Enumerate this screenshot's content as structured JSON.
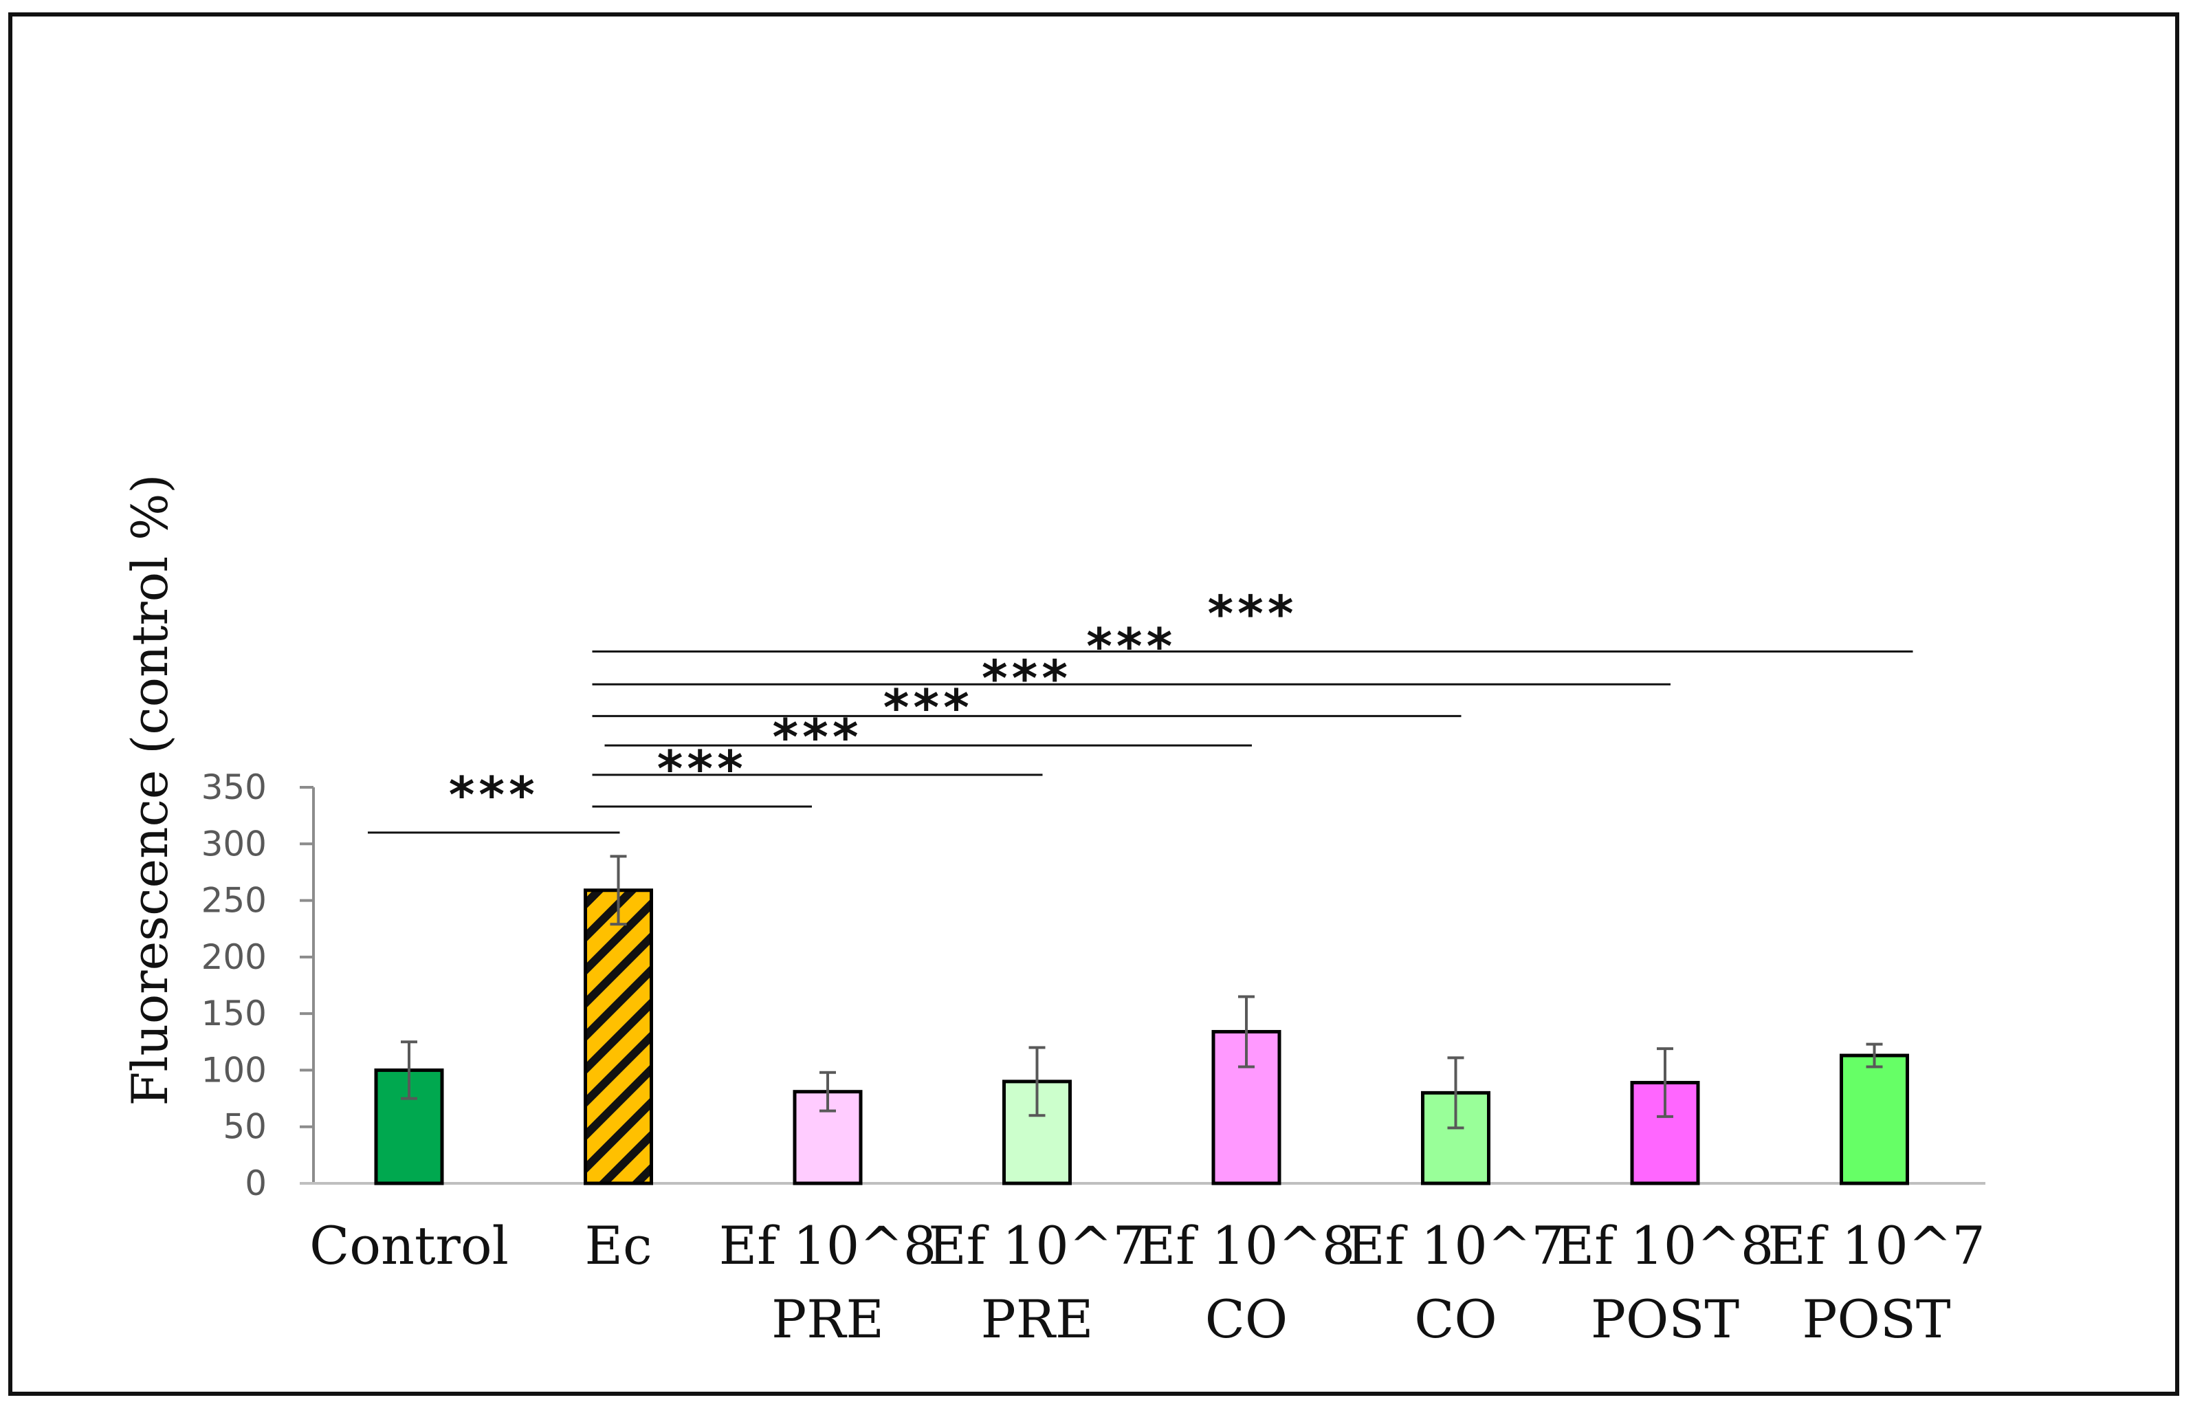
{
  "chart_data": {
    "type": "bar",
    "title": "",
    "xlabel": "",
    "ylabel": "Fluorescence (control %)",
    "ylim": [
      0,
      350
    ],
    "yticks": [
      0,
      50,
      100,
      150,
      200,
      250,
      300,
      350
    ],
    "grid": false,
    "categories": [
      [
        "Control"
      ],
      [
        "Ec"
      ],
      [
        "Ef 10^8",
        "PRE"
      ],
      [
        "Ef 10^7",
        "PRE"
      ],
      [
        "Ef 10^8",
        "CO"
      ],
      [
        "Ef 10^7",
        "CO"
      ],
      [
        "Ef 10^8",
        "POST"
      ],
      [
        "Ef 10^7",
        "POST"
      ]
    ],
    "values": [
      100,
      259,
      81,
      90,
      134,
      80,
      89,
      113
    ],
    "errors": [
      25,
      30,
      17,
      30,
      31,
      31,
      30,
      10
    ],
    "bar_colors": [
      "#00a84f",
      "#ffc000",
      "#ffccff",
      "#ccffcc",
      "#ff99ff",
      "#99ff99",
      "#ff66ff",
      "#66ff66"
    ],
    "bar_hatched": [
      false,
      true,
      false,
      false,
      false,
      false,
      false,
      false
    ],
    "significance": [
      {
        "from": 0,
        "to": 1,
        "label": "***",
        "level": 310
      },
      {
        "from": 1,
        "to": 2,
        "label": "***",
        "level": 333
      },
      {
        "from": 1,
        "to": 3,
        "label": "***",
        "level": 361
      },
      {
        "from": 1,
        "to": 4,
        "label": "***",
        "level": 387
      },
      {
        "from": 1,
        "to": 5,
        "label": "***",
        "level": 413
      },
      {
        "from": 1,
        "to": 6,
        "label": "***",
        "level": 441
      },
      {
        "from": 1,
        "to": 7,
        "label": "***",
        "level": 470
      }
    ]
  }
}
